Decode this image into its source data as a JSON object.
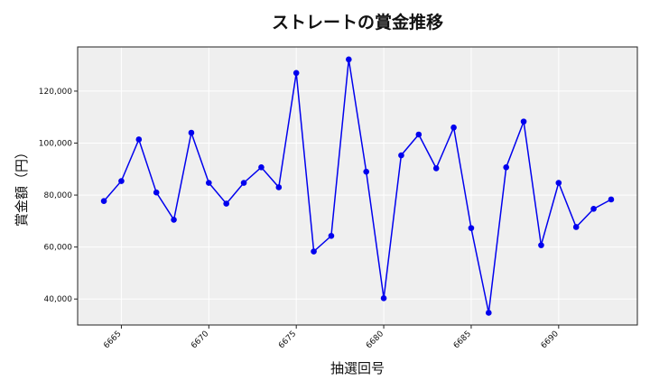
{
  "chart_data": {
    "type": "line",
    "title": "ストレートの賞金推移",
    "xlabel": "抽選回号",
    "ylabel": "賞金額（円）",
    "xlim": [
      6662.5,
      6694.5
    ],
    "ylim": [
      30000,
      137000
    ],
    "grid": true,
    "x_ticks": [
      6665,
      6670,
      6675,
      6680,
      6685,
      6690
    ],
    "y_ticks": [
      40000,
      60000,
      80000,
      100000,
      120000
    ],
    "y_tick_labels": [
      "40,000",
      "60,000",
      "80,000",
      "100,000",
      "120,000"
    ],
    "series_color": "#0000ee",
    "x": [
      6664,
      6665,
      6666,
      6667,
      6668,
      6669,
      6670,
      6671,
      6672,
      6673,
      6674,
      6675,
      6676,
      6677,
      6678,
      6679,
      6680,
      6681,
      6682,
      6683,
      6684,
      6685,
      6686,
      6687,
      6688,
      6689,
      6690,
      6691,
      6692,
      6693
    ],
    "y": [
      77700,
      85400,
      101400,
      81000,
      70500,
      104000,
      84700,
      76700,
      84700,
      90700,
      83000,
      127000,
      58300,
      64300,
      132200,
      89000,
      40300,
      95300,
      103300,
      90300,
      106000,
      67300,
      34700,
      90700,
      108300,
      60700,
      84700,
      67700,
      74700,
      78300
    ]
  }
}
